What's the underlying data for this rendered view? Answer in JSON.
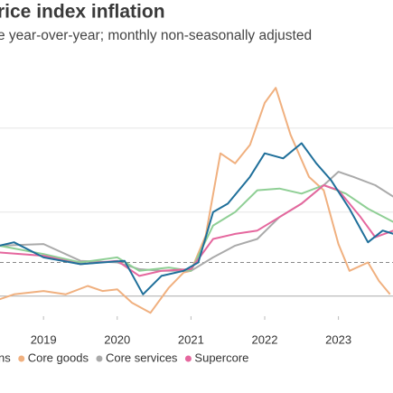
{
  "chart_data": {
    "type": "line",
    "title": "rice index inflation",
    "subtitle": "e year-over-year; monthly non-seasonally adjusted",
    "xlim": [
      2018.41,
      2023.74
    ],
    "ylim": [
      -1.2,
      14.4
    ],
    "xticks": [
      2019,
      2020,
      2021,
      2022,
      2023
    ],
    "gridlines": [
      5,
      10
    ],
    "baseline": 0,
    "target_line": 2,
    "series": [
      {
        "name": "Core goods",
        "color": "#f0b07f",
        "x": [
          2018.4,
          2018.6,
          2019.0,
          2019.3,
          2019.6,
          2019.8,
          2020.0,
          2020.2,
          2020.45,
          2020.7,
          2020.9,
          2021.0,
          2021.2,
          2021.4,
          2021.6,
          2021.8,
          2022.0,
          2022.15,
          2022.35,
          2022.6,
          2022.8,
          2023.0,
          2023.15,
          2023.4,
          2023.55,
          2023.7
        ],
        "values": [
          -0.2,
          0.1,
          0.3,
          0.1,
          0.6,
          0.3,
          0.4,
          -0.4,
          -1.0,
          0.5,
          1.4,
          1.5,
          3.6,
          8.5,
          7.9,
          9.0,
          11.5,
          12.4,
          9.6,
          7.1,
          6.3,
          3.1,
          1.5,
          2.0,
          0.9,
          0.1
        ]
      },
      {
        "name": "Core services",
        "color": "#aaaaaa",
        "x": [
          2018.4,
          2019.0,
          2019.5,
          2020.0,
          2020.3,
          2020.6,
          2021.0,
          2021.3,
          2021.6,
          2021.9,
          2022.2,
          2022.5,
          2022.8,
          2023.0,
          2023.2,
          2023.5,
          2023.75
        ],
        "values": [
          3.0,
          3.1,
          2.1,
          2.0,
          1.6,
          1.5,
          1.5,
          2.3,
          3.0,
          3.4,
          4.7,
          5.5,
          6.6,
          7.4,
          7.1,
          6.6,
          5.9
        ]
      },
      {
        "color": "#8fcf95",
        "x": [
          2018.4,
          2019.0,
          2019.5,
          2020.0,
          2020.3,
          2020.7,
          2021.0,
          2021.3,
          2021.6,
          2021.9,
          2022.2,
          2022.5,
          2022.8,
          2023.1,
          2023.4,
          2023.75
        ],
        "values": [
          3.0,
          2.5,
          2.0,
          2.3,
          1.5,
          1.7,
          1.5,
          4.2,
          5.0,
          6.3,
          6.4,
          6.1,
          6.6,
          6.1,
          5.2,
          4.4
        ]
      },
      {
        "name": "Supercore",
        "color": "#e5679e",
        "x": [
          2018.4,
          2019.0,
          2019.5,
          2020.0,
          2020.3,
          2020.6,
          2021.0,
          2021.3,
          2021.6,
          2021.9,
          2022.2,
          2022.5,
          2022.8,
          2023.0,
          2023.3,
          2023.5,
          2023.75
        ],
        "values": [
          2.6,
          2.4,
          1.9,
          2.1,
          1.2,
          1.5,
          1.6,
          3.4,
          3.7,
          3.9,
          4.7,
          5.5,
          6.6,
          6.3,
          4.7,
          3.5,
          3.9
        ]
      },
      {
        "name": "ns",
        "color": "#1f6f9a",
        "x": [
          2018.4,
          2018.6,
          2019.0,
          2019.5,
          2019.8,
          2020.1,
          2020.35,
          2020.6,
          2020.9,
          2021.1,
          2021.3,
          2021.5,
          2021.8,
          2022.0,
          2022.25,
          2022.5,
          2022.7,
          2022.9,
          2023.15,
          2023.4,
          2023.6,
          2023.75
        ],
        "values": [
          3.0,
          3.2,
          2.3,
          1.9,
          2.0,
          2.1,
          0.1,
          1.2,
          1.5,
          2.0,
          5.0,
          5.5,
          7.1,
          8.5,
          8.2,
          9.1,
          7.9,
          6.9,
          5.2,
          3.2,
          3.9,
          3.7
        ]
      }
    ]
  }
}
